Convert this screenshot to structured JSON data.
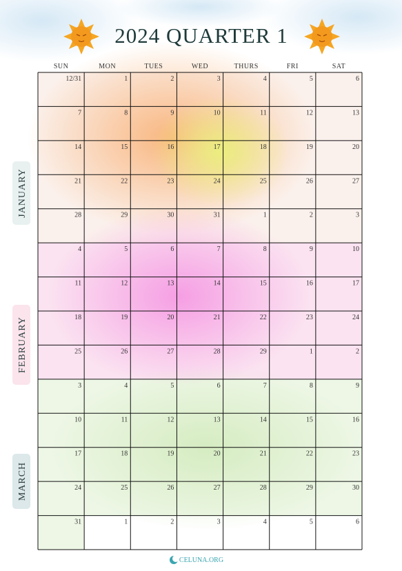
{
  "header": {
    "title": "2024 QUARTER 1"
  },
  "weekdays": [
    "SUN",
    "MON",
    "TUES",
    "WED",
    "THURS",
    "FRI",
    "SAT"
  ],
  "months": [
    "JANUARY",
    "FEBRUARY",
    "MARCH"
  ],
  "rows": [
    [
      "12/31",
      "1",
      "2",
      "3",
      "4",
      "5",
      "6"
    ],
    [
      "7",
      "8",
      "9",
      "10",
      "11",
      "12",
      "13"
    ],
    [
      "14",
      "15",
      "16",
      "17",
      "18",
      "19",
      "20"
    ],
    [
      "21",
      "22",
      "23",
      "24",
      "25",
      "26",
      "27"
    ],
    [
      "28",
      "29",
      "30",
      "31",
      "1",
      "2",
      "3"
    ],
    [
      "4",
      "5",
      "6",
      "7",
      "8",
      "9",
      "10"
    ],
    [
      "11",
      "12",
      "13",
      "14",
      "15",
      "16",
      "17"
    ],
    [
      "18",
      "19",
      "20",
      "21",
      "22",
      "23",
      "24"
    ],
    [
      "25",
      "26",
      "27",
      "28",
      "29",
      "1",
      "2"
    ],
    [
      "3",
      "4",
      "5",
      "6",
      "7",
      "8",
      "9"
    ],
    [
      "10",
      "11",
      "12",
      "13",
      "14",
      "15",
      "16"
    ],
    [
      "17",
      "18",
      "19",
      "20",
      "21",
      "22",
      "23"
    ],
    [
      "24",
      "25",
      "26",
      "27",
      "28",
      "29",
      "30"
    ],
    [
      "31",
      "1",
      "2",
      "3",
      "4",
      "5",
      "6"
    ]
  ],
  "footer": "CELUNA.ORG"
}
